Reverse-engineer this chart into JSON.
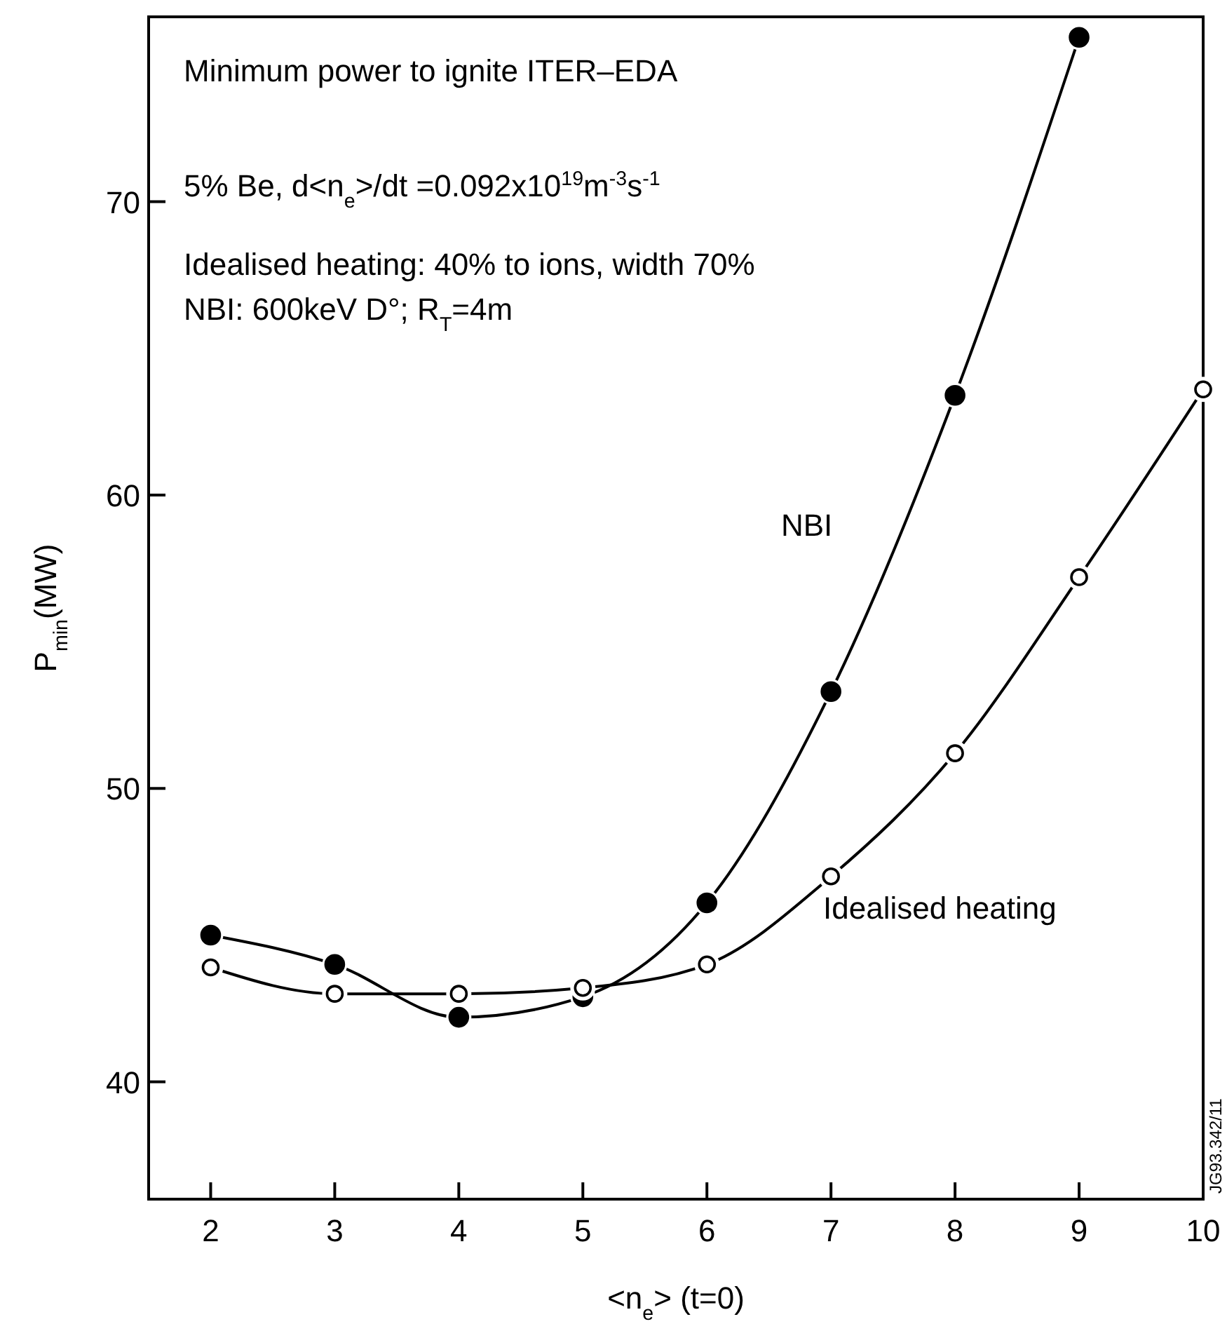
{
  "chart_data": {
    "type": "line",
    "annotations": [
      "Minimum power to ignite ITER–EDA",
      "5% Be, d<n$_{e}$>/dt =0.092x10$^{19}$m$^{-3}$s$^{-1}$",
      "Idealised heating: 40% to ions, width 70%",
      "NBI: 600keV D°; R$_{T}$=4m",
      "JG93.342/11"
    ],
    "xlabel": "<n$_{e}$> (t=0)",
    "ylabel": "P$_{min}$(MW)",
    "x": [
      2,
      3,
      4,
      5,
      6,
      7,
      8,
      9,
      10
    ],
    "series": [
      {
        "name": "NBI",
        "color": "#000000",
        "marker": "circle",
        "values": [
          45.0,
          44.0,
          42.2,
          42.9,
          46.1,
          53.3,
          63.4,
          75.6,
          null
        ]
      },
      {
        "name": "Idealised heating",
        "color": "#000000",
        "marker": "circle",
        "values": [
          43.9,
          43.0,
          43.0,
          43.2,
          44.0,
          47.0,
          51.2,
          57.2,
          63.6
        ]
      }
    ],
    "xlim": [
      1.5,
      10
    ],
    "ylim": [
      36,
      76.3
    ],
    "xticks": [
      2,
      3,
      4,
      5,
      6,
      7,
      8,
      9,
      10
    ],
    "yticks": [
      40,
      50,
      60,
      70
    ],
    "line_style": "solid"
  }
}
